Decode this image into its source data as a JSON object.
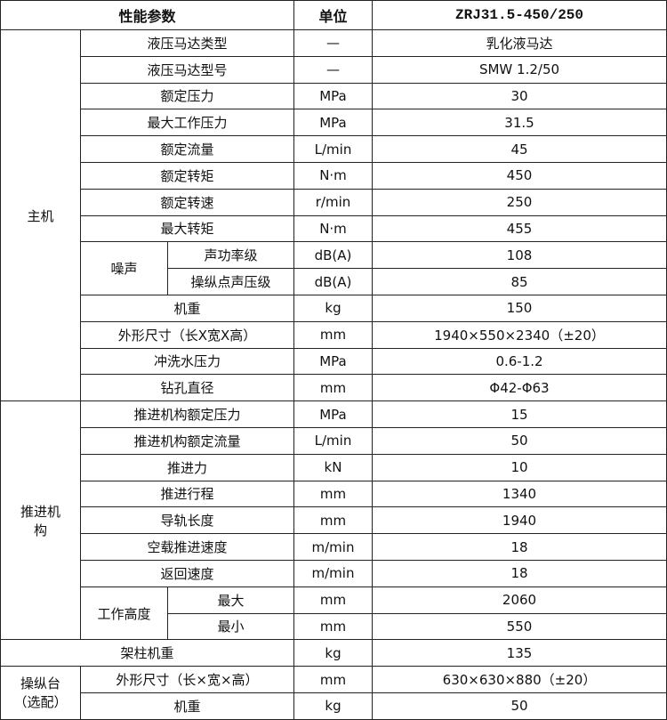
{
  "header": {
    "param": "性能参数",
    "unit": "单位",
    "model": "ZRJ31.5-450/250"
  },
  "main": {
    "label": "主机",
    "noise_label": "噪声",
    "rows": [
      {
        "name": "液压马达类型",
        "unit": "—",
        "value": "乳化液马达"
      },
      {
        "name": "液压马达型号",
        "unit": "—",
        "value": "SMW 1.2/50"
      },
      {
        "name": "额定压力",
        "unit": "MPa",
        "value": "30"
      },
      {
        "name": "最大工作压力",
        "unit": "MPa",
        "value": "31.5"
      },
      {
        "name": "额定流量",
        "unit": "L/min",
        "value": "45"
      },
      {
        "name": "额定转矩",
        "unit": "N·m",
        "value": "450"
      },
      {
        "name": "额定转速",
        "unit": "r/min",
        "value": "250"
      },
      {
        "name": "最大转矩",
        "unit": "N·m",
        "value": "455"
      },
      {
        "name": "声功率级",
        "unit": "dB(A)",
        "value": "108"
      },
      {
        "name": "操纵点声压级",
        "unit": "dB(A)",
        "value": "85"
      },
      {
        "name": "机重",
        "unit": "kg",
        "value": "150"
      },
      {
        "name": "外形尺寸（长X宽X高）",
        "unit": "mm",
        "value": "1940×550×2340（±20）"
      },
      {
        "name": "冲洗水压力",
        "unit": "MPa",
        "value": "0.6-1.2"
      },
      {
        "name": "钻孔直径",
        "unit": "mm",
        "value": "Φ42-Φ63"
      }
    ]
  },
  "propulsion": {
    "label": "推进机构",
    "height_label": "工作高度",
    "rows": [
      {
        "name": "推进机构额定压力",
        "unit": "MPa",
        "value": "15"
      },
      {
        "name": "推进机构额定流量",
        "unit": "L/min",
        "value": "50"
      },
      {
        "name": "推进力",
        "unit": "kN",
        "value": "10"
      },
      {
        "name": "推进行程",
        "unit": "mm",
        "value": "1340"
      },
      {
        "name": "导轨长度",
        "unit": "mm",
        "value": "1940"
      },
      {
        "name": "空载推进速度",
        "unit": "m/min",
        "value": "18"
      },
      {
        "name": "返回速度",
        "unit": "m/min",
        "value": "18"
      },
      {
        "name": "最大",
        "unit": "mm",
        "value": "2060"
      },
      {
        "name": "最小",
        "unit": "mm",
        "value": "550"
      }
    ]
  },
  "column": {
    "name": "架柱机重",
    "unit": "kg",
    "value": "135"
  },
  "console": {
    "label": "操纵台（选配）",
    "rows": [
      {
        "name": "外形尺寸（长×宽×高）",
        "unit": "mm",
        "value": "630×630×880（±20）"
      },
      {
        "name": "机重",
        "unit": "kg",
        "value": "50"
      }
    ]
  }
}
